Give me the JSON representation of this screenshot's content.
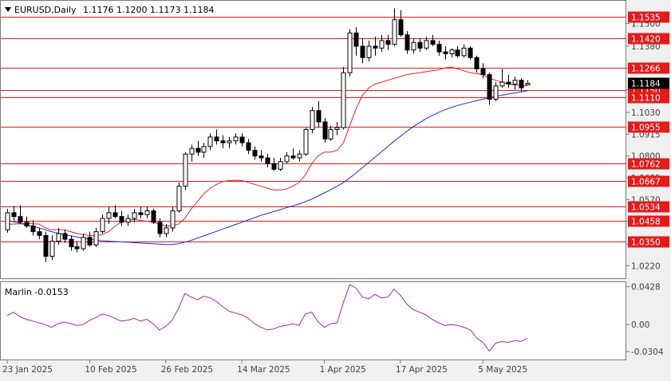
{
  "chart_data": [
    {
      "type": "candlestick",
      "symbol_label": "EURUSD,Daily",
      "ohlc_label": "1.1176 1.1200 1.1173 1.1184",
      "current_price": 1.1184,
      "current_price_label": "1.1184",
      "ylim": [
        1.015,
        1.162
      ],
      "price_ticks": [
        "1.1500",
        "1.1380",
        "1.1265",
        "1.1150",
        "1.1030",
        "1.0915",
        "1.0800",
        "1.0685",
        "1.0570",
        "1.0455",
        "1.0335",
        "1.0220"
      ],
      "level_lines": [
        {
          "value": 1.1535,
          "label": "1.1535"
        },
        {
          "value": 1.142,
          "label": "1.1420"
        },
        {
          "value": 1.1266,
          "label": "1.1266"
        },
        {
          "value": 1.115,
          "label": "1.1150"
        },
        {
          "value": 1.111,
          "label": "1.1110"
        },
        {
          "value": 1.0955,
          "label": "1.0955"
        },
        {
          "value": 1.0762,
          "label": "1.0762"
        },
        {
          "value": 1.0667,
          "label": "1.0667"
        },
        {
          "value": 1.0534,
          "label": "1.0534"
        },
        {
          "value": 1.0458,
          "label": "1.0458"
        },
        {
          "value": 1.035,
          "label": "1.0350"
        }
      ],
      "x_labels": [
        {
          "index": 0,
          "label": "23 Jan 2025"
        },
        {
          "index": 13,
          "label": "10 Feb 2025"
        },
        {
          "index": 25,
          "label": "26 Feb 2025"
        },
        {
          "index": 37,
          "label": "14 Mar 2025"
        },
        {
          "index": 50,
          "label": "1 Apr 2025"
        },
        {
          "index": 62,
          "label": "17 Apr 2025"
        },
        {
          "index": 75,
          "label": "5 May 2025"
        }
      ],
      "candles": [
        [
          1.041,
          1.052,
          1.0395,
          1.05
        ],
        [
          1.05,
          1.0535,
          1.046,
          1.048
        ],
        [
          1.048,
          1.054,
          1.044,
          1.045
        ],
        [
          1.045,
          1.048,
          1.042,
          1.043
        ],
        [
          1.043,
          1.046,
          1.038,
          1.04
        ],
        [
          1.04,
          1.042,
          1.036,
          1.038
        ],
        [
          1.038,
          1.04,
          1.024,
          1.027
        ],
        [
          1.027,
          1.038,
          1.025,
          1.035
        ],
        [
          1.035,
          1.042,
          1.033,
          1.039
        ],
        [
          1.039,
          1.041,
          1.034,
          1.036
        ],
        [
          1.036,
          1.038,
          1.03,
          1.032
        ],
        [
          1.032,
          1.035,
          1.029,
          1.031
        ],
        [
          1.031,
          1.039,
          1.03,
          1.037
        ],
        [
          1.037,
          1.04,
          1.032,
          1.033
        ],
        [
          1.033,
          1.042,
          1.032,
          1.04
        ],
        [
          1.04,
          1.049,
          1.039,
          1.047
        ],
        [
          1.047,
          1.053,
          1.044,
          1.05
        ],
        [
          1.05,
          1.054,
          1.047,
          1.048
        ],
        [
          1.048,
          1.051,
          1.043,
          1.045
        ],
        [
          1.045,
          1.049,
          1.043,
          1.047
        ],
        [
          1.047,
          1.052,
          1.045,
          1.05
        ],
        [
          1.05,
          1.053,
          1.047,
          1.049
        ],
        [
          1.049,
          1.053,
          1.047,
          1.051
        ],
        [
          1.051,
          1.052,
          1.044,
          1.045
        ],
        [
          1.045,
          1.047,
          1.037,
          1.039
        ],
        [
          1.039,
          1.044,
          1.037,
          1.042
        ],
        [
          1.042,
          1.053,
          1.04,
          1.051
        ],
        [
          1.051,
          1.066,
          1.05,
          1.064
        ],
        [
          1.064,
          1.082,
          1.062,
          1.081
        ],
        [
          1.081,
          1.086,
          1.077,
          1.084
        ],
        [
          1.084,
          1.088,
          1.08,
          1.082
        ],
        [
          1.082,
          1.087,
          1.079,
          1.085
        ],
        [
          1.085,
          1.092,
          1.083,
          1.09
        ],
        [
          1.09,
          1.094,
          1.086,
          1.088
        ],
        [
          1.088,
          1.091,
          1.084,
          1.087
        ],
        [
          1.087,
          1.09,
          1.084,
          1.088
        ],
        [
          1.088,
          1.092,
          1.086,
          1.09
        ],
        [
          1.09,
          1.092,
          1.085,
          1.087
        ],
        [
          1.087,
          1.089,
          1.081,
          1.083
        ],
        [
          1.083,
          1.085,
          1.078,
          1.08
        ],
        [
          1.08,
          1.083,
          1.077,
          1.079
        ],
        [
          1.079,
          1.081,
          1.074,
          1.076
        ],
        [
          1.076,
          1.079,
          1.072,
          1.073
        ],
        [
          1.073,
          1.079,
          1.072,
          1.077
        ],
        [
          1.077,
          1.082,
          1.076,
          1.08
        ],
        [
          1.08,
          1.084,
          1.078,
          1.079
        ],
        [
          1.079,
          1.083,
          1.077,
          1.081
        ],
        [
          1.081,
          1.095,
          1.08,
          1.094
        ],
        [
          1.094,
          1.106,
          1.092,
          1.104
        ],
        [
          1.104,
          1.109,
          1.095,
          1.098
        ],
        [
          1.098,
          1.1,
          1.087,
          1.089
        ],
        [
          1.089,
          1.096,
          1.088,
          1.094
        ],
        [
          1.094,
          1.098,
          1.091,
          1.095
        ],
        [
          1.095,
          1.127,
          1.094,
          1.124
        ],
        [
          1.124,
          1.147,
          1.122,
          1.145
        ],
        [
          1.145,
          1.148,
          1.133,
          1.138
        ],
        [
          1.138,
          1.142,
          1.129,
          1.132
        ],
        [
          1.132,
          1.141,
          1.13,
          1.138
        ],
        [
          1.138,
          1.143,
          1.133,
          1.137
        ],
        [
          1.137,
          1.144,
          1.135,
          1.141
        ],
        [
          1.141,
          1.144,
          1.136,
          1.139
        ],
        [
          1.139,
          1.158,
          1.138,
          1.152
        ],
        [
          1.152,
          1.157,
          1.143,
          1.144
        ],
        [
          1.144,
          1.146,
          1.134,
          1.136
        ],
        [
          1.136,
          1.142,
          1.134,
          1.14
        ],
        [
          1.14,
          1.142,
          1.135,
          1.137
        ],
        [
          1.137,
          1.143,
          1.136,
          1.141
        ],
        [
          1.141,
          1.144,
          1.138,
          1.139
        ],
        [
          1.139,
          1.141,
          1.133,
          1.135
        ],
        [
          1.135,
          1.138,
          1.131,
          1.134
        ],
        [
          1.134,
          1.137,
          1.132,
          1.136
        ],
        [
          1.136,
          1.138,
          1.132,
          1.133
        ],
        [
          1.133,
          1.139,
          1.132,
          1.137
        ],
        [
          1.137,
          1.138,
          1.131,
          1.132
        ],
        [
          1.132,
          1.133,
          1.124,
          1.126
        ],
        [
          1.126,
          1.129,
          1.121,
          1.123
        ],
        [
          1.123,
          1.124,
          1.107,
          1.11
        ],
        [
          1.11,
          1.119,
          1.109,
          1.117
        ],
        [
          1.117,
          1.126,
          1.116,
          1.119
        ],
        [
          1.119,
          1.123,
          1.116,
          1.118
        ],
        [
          1.118,
          1.122,
          1.115,
          1.12
        ],
        [
          1.12,
          1.121,
          1.114,
          1.116
        ],
        [
          1.1176,
          1.12,
          1.1173,
          1.1184
        ]
      ],
      "ma_red": [
        1.044,
        1.044,
        1.0442,
        1.0444,
        1.0442,
        1.044,
        1.042,
        1.041,
        1.041,
        1.041,
        1.04,
        1.039,
        1.0385,
        1.038,
        1.0378,
        1.0385,
        1.04,
        1.043,
        1.045,
        1.046,
        1.0465,
        1.046,
        1.0455,
        1.045,
        1.044,
        1.043,
        1.043,
        1.044,
        1.047,
        1.052,
        1.056,
        1.06,
        1.063,
        1.065,
        1.0665,
        1.067,
        1.0672,
        1.067,
        1.066,
        1.065,
        1.064,
        1.063,
        1.062,
        1.062,
        1.0625,
        1.064,
        1.066,
        1.07,
        1.076,
        1.08,
        1.082,
        1.082,
        1.083,
        1.087,
        1.096,
        1.105,
        1.112,
        1.116,
        1.118,
        1.119,
        1.12,
        1.121,
        1.122,
        1.123,
        1.1235,
        1.124,
        1.1245,
        1.125,
        1.1255,
        1.1265,
        1.127,
        1.126,
        1.125,
        1.124,
        1.1235,
        1.123,
        1.121,
        1.12,
        1.119,
        1.118,
        1.1175,
        1.1172,
        1.117
      ],
      "ma_blue": [
        1.046,
        1.0452,
        1.0444,
        1.0436,
        1.0428,
        1.042,
        1.041,
        1.04,
        1.0392,
        1.0385,
        1.0378,
        1.0372,
        1.0366,
        1.036,
        1.0356,
        1.0352,
        1.035,
        1.0348,
        1.0346,
        1.0344,
        1.0342,
        1.034,
        1.0338,
        1.0336,
        1.0334,
        1.0332,
        1.0332,
        1.0336,
        1.0344,
        1.0354,
        1.0366,
        1.0378,
        1.039,
        1.0402,
        1.0414,
        1.0426,
        1.0438,
        1.045,
        1.0462,
        1.0474,
        1.0486,
        1.0496,
        1.0506,
        1.0516,
        1.0526,
        1.0536,
        1.0546,
        1.0558,
        1.0572,
        1.0588,
        1.0605,
        1.0622,
        1.064,
        1.066,
        1.0684,
        1.071,
        1.0738,
        1.0766,
        1.0794,
        1.0822,
        1.085,
        1.0878,
        1.0904,
        1.093,
        1.0954,
        1.0976,
        1.0996,
        1.1014,
        1.103,
        1.1044,
        1.1056,
        1.1067,
        1.1076,
        1.1084,
        1.1092,
        1.11,
        1.1108,
        1.1115,
        1.1121,
        1.1127,
        1.1133,
        1.1138,
        1.1144
      ]
    },
    {
      "type": "line",
      "indicator_label": "Marlin -0.0153",
      "ylim": [
        -0.0402,
        0.0478
      ],
      "y_ticks": [
        {
          "value": 0.0428,
          "label": "0.0428"
        },
        {
          "value": 0.0,
          "label": "0.00"
        },
        {
          "value": -0.0304,
          "label": "-0.0304"
        }
      ],
      "values": [
        0.01,
        0.014,
        0.009,
        0.006,
        0.004,
        0.002,
        0.0,
        -0.003,
        0.001,
        0.003,
        0.001,
        -0.001,
        0.0,
        0.005,
        0.008,
        0.012,
        0.01,
        0.007,
        0.004,
        0.005,
        0.007,
        0.004,
        0.006,
        0.001,
        -0.006,
        -0.002,
        0.005,
        0.018,
        0.035,
        0.031,
        0.028,
        0.032,
        0.03,
        0.026,
        0.02,
        0.015,
        0.013,
        0.011,
        0.007,
        0.001,
        -0.003,
        -0.006,
        -0.005,
        -0.002,
        -0.001,
        0.001,
        -0.001,
        0.012,
        0.014,
        0.003,
        -0.003,
        0.001,
        0.002,
        0.025,
        0.045,
        0.041,
        0.031,
        0.029,
        0.034,
        0.03,
        0.031,
        0.04,
        0.033,
        0.023,
        0.017,
        0.014,
        0.011,
        0.006,
        0.002,
        -0.001,
        0.0,
        -0.001,
        -0.003,
        -0.006,
        -0.015,
        -0.02,
        -0.03,
        -0.021,
        -0.019,
        -0.02,
        -0.018,
        -0.019,
        -0.0153
      ]
    }
  ]
}
